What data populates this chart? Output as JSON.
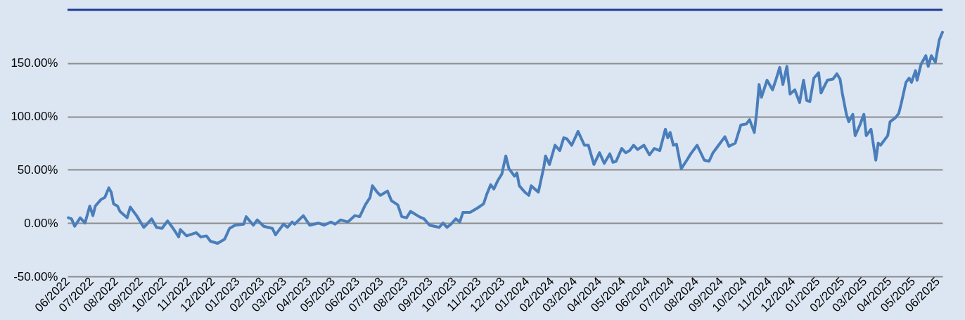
{
  "chart_data": {
    "type": "line",
    "x": [
      "2022-06-02",
      "2022-06-06",
      "2022-06-10",
      "2022-06-17",
      "2022-06-23",
      "2022-06-29",
      "2022-07-03",
      "2022-07-06",
      "2022-07-13",
      "2022-07-18",
      "2022-07-23",
      "2022-07-26",
      "2022-07-29",
      "2022-08-03",
      "2022-08-06",
      "2022-08-15",
      "2022-08-19",
      "2022-08-27",
      "2022-09-05",
      "2022-09-09",
      "2022-09-15",
      "2022-09-21",
      "2022-09-28",
      "2022-10-05",
      "2022-10-12",
      "2022-10-19",
      "2022-10-21",
      "2022-10-29",
      "2022-11-10",
      "2022-11-16",
      "2022-11-23",
      "2022-11-28",
      "2022-12-07",
      "2022-12-16",
      "2022-12-22",
      "2022-12-29",
      "2023-01-09",
      "2023-01-12",
      "2023-01-21",
      "2023-01-26",
      "2023-02-03",
      "2023-02-14",
      "2023-02-18",
      "2023-02-28",
      "2023-03-05",
      "2023-03-11",
      "2023-03-14",
      "2023-03-25",
      "2023-04-02",
      "2023-04-13",
      "2023-04-20",
      "2023-04-29",
      "2023-05-04",
      "2023-05-11",
      "2023-05-20",
      "2023-05-29",
      "2023-06-04",
      "2023-06-11",
      "2023-06-17",
      "2023-06-20",
      "2023-06-26",
      "2023-06-30",
      "2023-07-09",
      "2023-07-14",
      "2023-07-22",
      "2023-07-27",
      "2023-08-02",
      "2023-08-07",
      "2023-08-18",
      "2023-08-24",
      "2023-08-31",
      "2023-09-12",
      "2023-09-17",
      "2023-09-22",
      "2023-09-27",
      "2023-10-03",
      "2023-10-08",
      "2023-10-12",
      "2023-10-21",
      "2023-10-30",
      "2023-11-07",
      "2023-11-11",
      "2023-11-16",
      "2023-11-20",
      "2023-11-25",
      "2023-11-30",
      "2023-12-05",
      "2023-12-09",
      "2023-12-16",
      "2023-12-19",
      "2023-12-22",
      "2023-12-29",
      "2024-01-03",
      "2024-01-06",
      "2024-01-15",
      "2024-01-22",
      "2024-01-24",
      "2024-01-29",
      "2024-02-05",
      "2024-02-11",
      "2024-02-16",
      "2024-02-20",
      "2024-02-26",
      "2024-03-05",
      "2024-03-13",
      "2024-03-18",
      "2024-03-25",
      "2024-04-01",
      "2024-04-07",
      "2024-04-14",
      "2024-04-18",
      "2024-04-22",
      "2024-04-29",
      "2024-05-04",
      "2024-05-09",
      "2024-05-14",
      "2024-05-19",
      "2024-05-27",
      "2024-06-03",
      "2024-06-09",
      "2024-06-16",
      "2024-06-23",
      "2024-06-26",
      "2024-06-29",
      "2024-07-03",
      "2024-07-07",
      "2024-07-13",
      "2024-07-20",
      "2024-07-25",
      "2024-08-02",
      "2024-08-11",
      "2024-08-17",
      "2024-08-22",
      "2024-08-29",
      "2024-09-06",
      "2024-09-11",
      "2024-09-19",
      "2024-09-26",
      "2024-10-03",
      "2024-10-07",
      "2024-10-13",
      "2024-10-16",
      "2024-10-19",
      "2024-10-22",
      "2024-10-29",
      "2024-11-05",
      "2024-11-09",
      "2024-11-14",
      "2024-11-18",
      "2024-11-23",
      "2024-11-27",
      "2024-12-03",
      "2024-12-09",
      "2024-12-14",
      "2024-12-18",
      "2024-12-22",
      "2024-12-27",
      "2025-01-02",
      "2025-01-05",
      "2025-01-13",
      "2025-01-20",
      "2025-01-25",
      "2025-01-29",
      "2025-02-01",
      "2025-02-06",
      "2025-02-09",
      "2025-02-14",
      "2025-02-17",
      "2025-02-23",
      "2025-02-28",
      "2025-03-03",
      "2025-03-09",
      "2025-03-15",
      "2025-03-18",
      "2025-03-21",
      "2025-03-30",
      "2025-04-02",
      "2025-04-09",
      "2025-04-13",
      "2025-04-16",
      "2025-04-22",
      "2025-04-26",
      "2025-04-29",
      "2025-05-04",
      "2025-05-06",
      "2025-05-11",
      "2025-05-17",
      "2025-05-20",
      "2025-05-24",
      "2025-05-29",
      "2025-06-03",
      "2025-06-07"
    ],
    "series": [
      {
        "color": "#4a7ebb",
        "values": [
          5,
          4,
          -3,
          5,
          0,
          16,
          7,
          16,
          22,
          24,
          33,
          29,
          18,
          16,
          11,
          5,
          15,
          7,
          -4,
          -1,
          4,
          -4,
          -5,
          2,
          -5,
          -13,
          -6,
          -12,
          -9,
          -13,
          -12,
          -17,
          -19,
          -15,
          -5,
          -2,
          -1,
          6,
          -2,
          3,
          -3,
          -5,
          -11,
          -1,
          -4,
          1,
          -1,
          7,
          -2,
          0,
          -2,
          1,
          -1,
          3,
          1,
          7,
          6,
          17,
          24,
          35,
          29,
          26,
          30,
          21,
          17,
          6,
          5,
          11,
          6,
          4,
          -2,
          -4,
          0,
          -4,
          -1,
          4,
          1,
          10,
          10,
          14,
          18,
          27,
          36,
          32,
          40,
          46,
          63,
          51,
          44,
          47,
          35,
          29,
          26,
          35,
          29,
          53,
          63,
          55,
          73,
          68,
          80,
          79,
          73,
          86,
          73,
          73,
          55,
          66,
          56,
          65,
          57,
          58,
          70,
          66,
          68,
          73,
          69,
          73,
          64,
          70,
          68,
          88,
          80,
          85,
          73,
          74,
          51,
          59,
          65,
          73,
          59,
          58,
          66,
          73,
          81,
          72,
          75,
          92,
          93,
          97,
          85,
          104,
          130,
          118,
          134,
          125,
          134,
          146,
          130,
          147,
          121,
          125,
          113,
          134,
          115,
          114,
          136,
          141,
          122,
          134,
          135,
          140,
          135,
          121,
          102,
          95,
          102,
          82,
          92,
          102,
          82,
          88,
          59,
          75,
          73,
          82,
          95,
          99,
          103,
          112,
          132,
          136,
          132,
          143,
          134,
          149,
          157,
          147,
          157,
          151,
          172,
          179
        ]
      }
    ],
    "xlim": [
      "2022-06-01",
      "2025-06-07"
    ],
    "xticks": [
      {
        "value": "2022-06-01",
        "label": "06/2022"
      },
      {
        "value": "2022-07-01",
        "label": "07/2022"
      },
      {
        "value": "2022-08-01",
        "label": "08/2022"
      },
      {
        "value": "2022-09-01",
        "label": "09/2022"
      },
      {
        "value": "2022-10-01",
        "label": "10/2022"
      },
      {
        "value": "2022-11-01",
        "label": "11/2022"
      },
      {
        "value": "2022-12-01",
        "label": "12/2022"
      },
      {
        "value": "2023-01-01",
        "label": "01/2023"
      },
      {
        "value": "2023-02-01",
        "label": "02/2023"
      },
      {
        "value": "2023-03-01",
        "label": "03/2023"
      },
      {
        "value": "2023-04-01",
        "label": "04/2023"
      },
      {
        "value": "2023-05-01",
        "label": "05/2023"
      },
      {
        "value": "2023-06-01",
        "label": "06/2023"
      },
      {
        "value": "2023-07-01",
        "label": "07/2023"
      },
      {
        "value": "2023-08-01",
        "label": "08/2023"
      },
      {
        "value": "2023-09-01",
        "label": "09/2023"
      },
      {
        "value": "2023-10-01",
        "label": "10/2023"
      },
      {
        "value": "2023-11-01",
        "label": "11/2023"
      },
      {
        "value": "2023-12-01",
        "label": "12/2023"
      },
      {
        "value": "2024-01-01",
        "label": "01/2024"
      },
      {
        "value": "2024-02-01",
        "label": "02/2024"
      },
      {
        "value": "2024-03-01",
        "label": "03/2024"
      },
      {
        "value": "2024-04-01",
        "label": "04/2024"
      },
      {
        "value": "2024-05-01",
        "label": "05/2024"
      },
      {
        "value": "2024-06-01",
        "label": "06/2024"
      },
      {
        "value": "2024-07-01",
        "label": "07/2024"
      },
      {
        "value": "2024-08-01",
        "label": "08/2024"
      },
      {
        "value": "2024-09-01",
        "label": "09/2024"
      },
      {
        "value": "2024-10-01",
        "label": "10/2024"
      },
      {
        "value": "2024-11-01",
        "label": "11/2024"
      },
      {
        "value": "2024-12-01",
        "label": "12/2024"
      },
      {
        "value": "2025-01-01",
        "label": "01/2025"
      },
      {
        "value": "2025-02-01",
        "label": "02/2025"
      },
      {
        "value": "2025-03-01",
        "label": "03/2025"
      },
      {
        "value": "2025-04-01",
        "label": "04/2025"
      },
      {
        "value": "2025-05-01",
        "label": "05/2025"
      },
      {
        "value": "2025-06-01",
        "label": "06/2025"
      }
    ],
    "ylim": [
      -50,
      200
    ],
    "yticks": [
      {
        "value": -50,
        "label": "-50.00%"
      },
      {
        "value": 0,
        "label": "0.00%"
      },
      {
        "value": 50,
        "label": "50.00%"
      },
      {
        "value": 100,
        "label": "100.00%"
      },
      {
        "value": 150,
        "label": "150.00%"
      }
    ],
    "grid": "y",
    "marker": "none",
    "line_style": "solid"
  }
}
